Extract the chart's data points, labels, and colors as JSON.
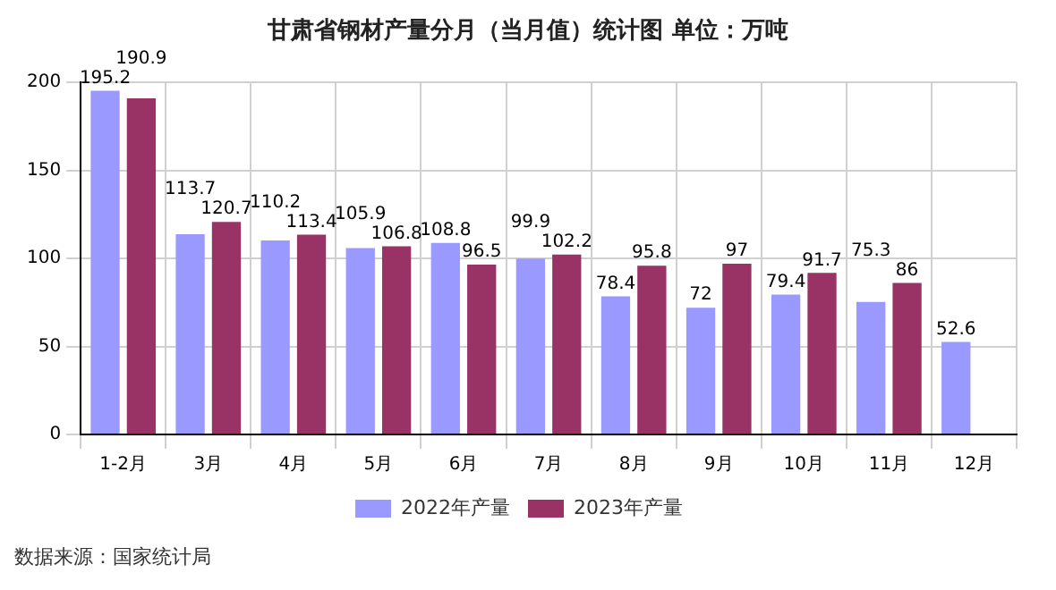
{
  "chart_data": {
    "type": "bar",
    "title": "甘肃省钢材产量分月（当月值）统计图  单位：万吨",
    "categories": [
      "1-2月",
      "3月",
      "4月",
      "5月",
      "6月",
      "7月",
      "8月",
      "9月",
      "10月",
      "11月",
      "12月"
    ],
    "series": [
      {
        "name": "2022年产量",
        "color": "#9999ff",
        "values": [
          195.2,
          113.7,
          110.2,
          105.9,
          108.8,
          99.9,
          78.4,
          72,
          79.4,
          75.3,
          52.6
        ]
      },
      {
        "name": "2023年产量",
        "color": "#993366",
        "values": [
          190.9,
          120.7,
          113.4,
          106.8,
          96.5,
          102.2,
          95.8,
          97,
          91.7,
          86,
          null
        ]
      }
    ],
    "ylim": [
      0,
      200
    ],
    "yticks": [
      0,
      50,
      100,
      150,
      200
    ],
    "grid": true,
    "legend": "bottom",
    "data_labels": true,
    "annotations": [
      "数据来源：国家统计局"
    ]
  }
}
